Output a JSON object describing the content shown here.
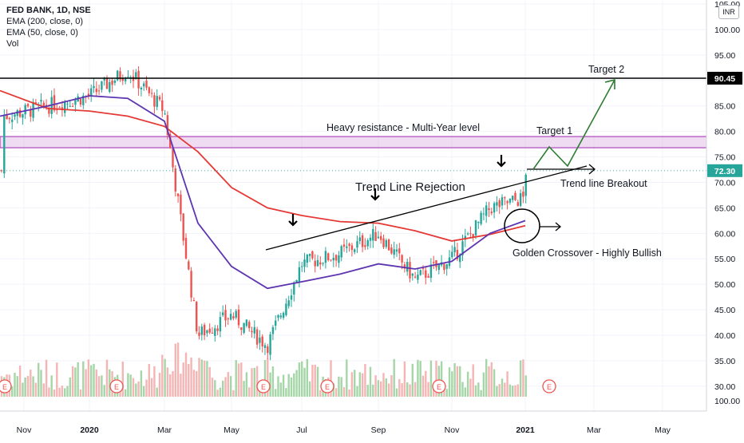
{
  "legend": {
    "symbol_line": "FED BANK, 1D, NSE",
    "ema200": "EMA (200, close, 0)",
    "ema50": "EMA (50, close, 0)",
    "vol": "Vol"
  },
  "currency_badge": "INR",
  "colors": {
    "up": "#26a69a",
    "down": "#ef5350",
    "ema200": "#e53935",
    "ema50": "#5e35b1",
    "resistance_fill": "#e1bee7",
    "resistance_edge": "#9c27b0",
    "annotation_green": "#2e7d32",
    "vol_up": "#a5d6a7",
    "vol_down": "#f4b5b5",
    "grid": "#f0f3fa"
  },
  "chart_data": {
    "type": "candlestick",
    "x_ticks": [
      "Nov",
      "2020",
      "Mar",
      "May",
      "Jul",
      "Sep",
      "Nov",
      "2021",
      "Mar",
      "May"
    ],
    "y_ticks": [
      "105.00",
      "100.00",
      "95.00",
      "90.00",
      "85.00",
      "80.00",
      "75.00",
      "70.00",
      "65.00",
      "60.00",
      "55.00",
      "50.00",
      "45.00",
      "40.00",
      "35.00",
      "30.00"
    ],
    "vol_axis_label": "100.00",
    "ylim": [
      27,
      105
    ],
    "price_tag_current": "72.30",
    "price_tag_level": "90.45",
    "level_90_45": 90.45,
    "current_price": 72.3,
    "resistance_zone": [
      76.8,
      79.0
    ],
    "price_series_monthly": [
      {
        "month": "Oct 2019",
        "close": 83
      },
      {
        "month": "Nov 2019",
        "close": 85
      },
      {
        "month": "Dec 2019",
        "close": 87
      },
      {
        "month": "Jan 2020",
        "close": 92
      },
      {
        "month": "Feb 2020",
        "close": 84
      },
      {
        "month": "Mar 2020",
        "close": 40
      },
      {
        "month": "Apr 2020",
        "close": 44
      },
      {
        "month": "May 2020",
        "close": 38
      },
      {
        "month": "Jun 2020",
        "close": 54
      },
      {
        "month": "Jul 2020",
        "close": 56
      },
      {
        "month": "Aug 2020",
        "close": 60
      },
      {
        "month": "Sep 2020",
        "close": 51
      },
      {
        "month": "Oct 2020",
        "close": 55
      },
      {
        "month": "Nov 2020",
        "close": 65
      },
      {
        "month": "Dec 2020",
        "close": 67
      },
      {
        "month": "Jan 2021",
        "close": 72.3
      }
    ],
    "annotations": {
      "heavy_resistance": "Heavy resistance - Multi-Year level",
      "target1": "Target 1",
      "target2": "Target 2",
      "trendline_rejection": "Trend Line Rejection",
      "trendline_breakout": "Trend line Breakout",
      "golden_crossover": "Golden Crossover - Highly Bullish"
    },
    "event_marker": "E"
  }
}
